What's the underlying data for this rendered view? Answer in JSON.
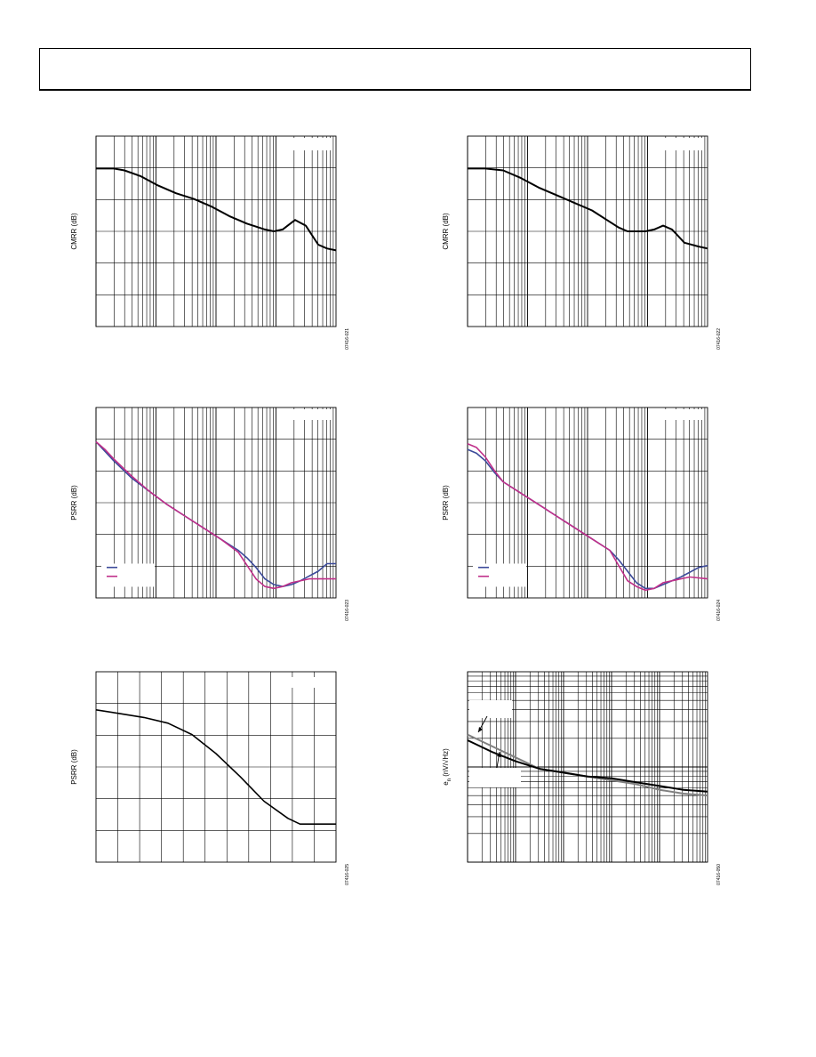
{
  "colors": {
    "black": "#000000",
    "blue": "#3c4a9a",
    "magenta": "#c0308a",
    "gray": "#808080"
  },
  "chart_data": [
    {
      "type": "line",
      "ylabel": "CMRR (dB)",
      "xscale": "log",
      "fig_id": "07416-021",
      "series": [
        {
          "color": "#000000",
          "points": [
            [
              0,
              0.17
            ],
            [
              0.1,
              0.17
            ],
            [
              0.16,
              0.18
            ],
            [
              0.25,
              0.21
            ],
            [
              0.35,
              0.26
            ],
            [
              0.45,
              0.3
            ],
            [
              0.55,
              0.33
            ],
            [
              0.65,
              0.37
            ],
            [
              0.75,
              0.42
            ],
            [
              0.85,
              0.46
            ],
            [
              0.95,
              0.49
            ],
            [
              1.0,
              0.5
            ],
            [
              1.05,
              0.49
            ],
            [
              1.12,
              0.44
            ],
            [
              1.18,
              0.47
            ],
            [
              1.25,
              0.57
            ],
            [
              1.3,
              0.59
            ],
            [
              1.35,
              0.6
            ]
          ]
        }
      ]
    },
    {
      "type": "line",
      "ylabel": "CMRR (dB)",
      "xscale": "log",
      "fig_id": "07416-022",
      "series": [
        {
          "color": "#000000",
          "points": [
            [
              0,
              0.17
            ],
            [
              0.1,
              0.17
            ],
            [
              0.2,
              0.18
            ],
            [
              0.3,
              0.22
            ],
            [
              0.4,
              0.27
            ],
            [
              0.5,
              0.31
            ],
            [
              0.6,
              0.35
            ],
            [
              0.7,
              0.39
            ],
            [
              0.8,
              0.45
            ],
            [
              0.85,
              0.48
            ],
            [
              0.9,
              0.5
            ],
            [
              1.0,
              0.5
            ],
            [
              1.05,
              0.49
            ],
            [
              1.1,
              0.47
            ],
            [
              1.15,
              0.49
            ],
            [
              1.22,
              0.56
            ],
            [
              1.3,
              0.58
            ],
            [
              1.35,
              0.59
            ]
          ]
        }
      ]
    },
    {
      "type": "line",
      "ylabel": "PSRR (dB)",
      "xscale": "log",
      "fig_id": "07416-023",
      "series": [
        {
          "color": "#3c4a9a",
          "points": [
            [
              0,
              0.18
            ],
            [
              0.05,
              0.23
            ],
            [
              0.1,
              0.28
            ],
            [
              0.2,
              0.37
            ],
            [
              0.3,
              0.44
            ],
            [
              0.4,
              0.51
            ],
            [
              0.5,
              0.57
            ],
            [
              0.6,
              0.63
            ],
            [
              0.7,
              0.69
            ],
            [
              0.8,
              0.75
            ],
            [
              0.85,
              0.79
            ],
            [
              0.9,
              0.84
            ],
            [
              0.95,
              0.9
            ],
            [
              1.0,
              0.93
            ],
            [
              1.05,
              0.94
            ],
            [
              1.1,
              0.93
            ],
            [
              1.15,
              0.91
            ],
            [
              1.25,
              0.86
            ],
            [
              1.3,
              0.82
            ],
            [
              1.35,
              0.82
            ]
          ]
        },
        {
          "color": "#c0308a",
          "points": [
            [
              0,
              0.18
            ],
            [
              0.05,
              0.22
            ],
            [
              0.1,
              0.27
            ],
            [
              0.2,
              0.36
            ],
            [
              0.3,
              0.44
            ],
            [
              0.4,
              0.51
            ],
            [
              0.5,
              0.57
            ],
            [
              0.6,
              0.63
            ],
            [
              0.7,
              0.69
            ],
            [
              0.8,
              0.76
            ],
            [
              0.85,
              0.83
            ],
            [
              0.9,
              0.9
            ],
            [
              0.95,
              0.94
            ],
            [
              1.0,
              0.95
            ],
            [
              1.05,
              0.94
            ],
            [
              1.1,
              0.92
            ],
            [
              1.2,
              0.9
            ],
            [
              1.25,
              0.9
            ],
            [
              1.35,
              0.9
            ]
          ]
        }
      ]
    },
    {
      "type": "line",
      "ylabel": "PSRR (dB)",
      "xscale": "log",
      "fig_id": "07416-024",
      "series": [
        {
          "color": "#3c4a9a",
          "points": [
            [
              0,
              0.22
            ],
            [
              0.05,
              0.24
            ],
            [
              0.1,
              0.28
            ],
            [
              0.15,
              0.34
            ],
            [
              0.2,
              0.39
            ],
            [
              0.3,
              0.45
            ],
            [
              0.4,
              0.51
            ],
            [
              0.5,
              0.57
            ],
            [
              0.6,
              0.63
            ],
            [
              0.7,
              0.69
            ],
            [
              0.8,
              0.75
            ],
            [
              0.85,
              0.8
            ],
            [
              0.9,
              0.86
            ],
            [
              0.95,
              0.92
            ],
            [
              1.0,
              0.95
            ],
            [
              1.05,
              0.95
            ],
            [
              1.1,
              0.93
            ],
            [
              1.2,
              0.89
            ],
            [
              1.3,
              0.84
            ],
            [
              1.35,
              0.83
            ]
          ]
        },
        {
          "color": "#c0308a",
          "points": [
            [
              0,
              0.19
            ],
            [
              0.05,
              0.21
            ],
            [
              0.1,
              0.26
            ],
            [
              0.15,
              0.33
            ],
            [
              0.2,
              0.39
            ],
            [
              0.3,
              0.45
            ],
            [
              0.4,
              0.51
            ],
            [
              0.5,
              0.57
            ],
            [
              0.6,
              0.63
            ],
            [
              0.7,
              0.69
            ],
            [
              0.8,
              0.75
            ],
            [
              0.85,
              0.83
            ],
            [
              0.9,
              0.91
            ],
            [
              0.95,
              0.94
            ],
            [
              1.0,
              0.96
            ],
            [
              1.05,
              0.95
            ],
            [
              1.1,
              0.92
            ],
            [
              1.2,
              0.9
            ],
            [
              1.25,
              0.89
            ],
            [
              1.35,
              0.9
            ]
          ]
        }
      ]
    },
    {
      "type": "line",
      "ylabel": "PSRR (dB)",
      "xscale": "linear",
      "fig_id": "07416-025",
      "series": [
        {
          "color": "#000000",
          "points": [
            [
              0,
              0.2
            ],
            [
              0.1,
              0.22
            ],
            [
              0.2,
              0.24
            ],
            [
              0.3,
              0.27
            ],
            [
              0.4,
              0.33
            ],
            [
              0.5,
              0.43
            ],
            [
              0.6,
              0.55
            ],
            [
              0.7,
              0.68
            ],
            [
              0.8,
              0.77
            ],
            [
              0.85,
              0.8
            ],
            [
              0.9,
              0.8
            ],
            [
              1.0,
              0.8
            ]
          ]
        }
      ]
    },
    {
      "type": "line",
      "ylabel": "e",
      "ylabel_sub": "n",
      "ylabel_suffix": " (nV/√Hz)",
      "xscale": "log",
      "yscale": "log",
      "fig_id": "07416-050",
      "series": [
        {
          "color": "#808080",
          "points": [
            [
              0,
              0.33
            ],
            [
              0.1,
              0.39
            ],
            [
              0.2,
              0.45
            ],
            [
              0.3,
              0.51
            ],
            [
              0.4,
              0.53
            ],
            [
              0.5,
              0.55
            ],
            [
              0.6,
              0.57
            ],
            [
              0.7,
              0.59
            ],
            [
              0.8,
              0.62
            ],
            [
              0.9,
              0.64
            ],
            [
              1.0,
              0.65
            ]
          ]
        },
        {
          "color": "#000000",
          "points": [
            [
              0,
              0.36
            ],
            [
              0.1,
              0.42
            ],
            [
              0.2,
              0.47
            ],
            [
              0.3,
              0.51
            ],
            [
              0.4,
              0.53
            ],
            [
              0.5,
              0.55
            ],
            [
              0.6,
              0.56
            ],
            [
              0.7,
              0.58
            ],
            [
              0.8,
              0.6
            ],
            [
              0.9,
              0.62
            ],
            [
              1.0,
              0.63
            ]
          ]
        }
      ]
    }
  ]
}
